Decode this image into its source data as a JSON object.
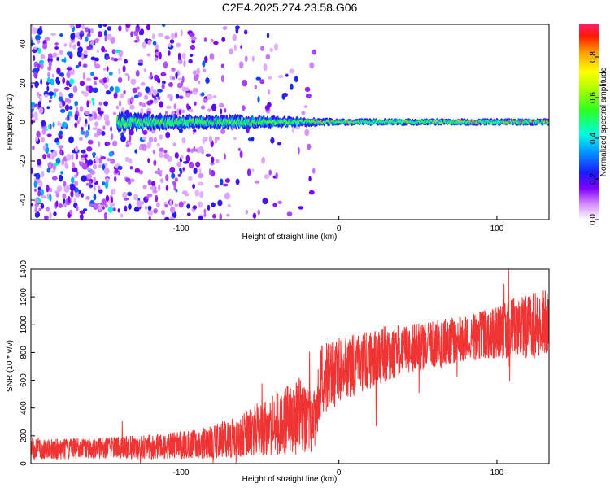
{
  "title": "C2E4.2025.274.23.58.G06",
  "chart_data": [
    {
      "type": "heatmap",
      "title": "",
      "xlabel": "Height of straight line (km)",
      "ylabel": "Frequency (Hz)",
      "xlim": [
        -195,
        133
      ],
      "ylim": [
        -50,
        50
      ],
      "xticks": [
        -100,
        0,
        100
      ],
      "yticks": [
        -40,
        -20,
        0,
        20,
        40
      ],
      "grid": false,
      "colorbar": {
        "label": "Normalized spectral amplitude",
        "range": [
          0,
          0.96
        ],
        "ticks": [
          0.0,
          0.2,
          0.4,
          0.6,
          0.8
        ]
      },
      "signal_band": {
        "center_frequency_hz": 0,
        "spread": [
          [
            -140,
            4
          ],
          [
            -100,
            3
          ],
          [
            -60,
            3
          ],
          [
            -20,
            2
          ],
          [
            0,
            1.5
          ],
          [
            40,
            1.5
          ],
          [
            133,
            1.5
          ]
        ]
      },
      "spurious_feature": {
        "x": [
          -35,
          -30,
          -27
        ],
        "y": [
          13,
          18,
          22
        ]
      }
    },
    {
      "type": "line",
      "title": "",
      "xlabel": "Height of straight line (km)",
      "ylabel": "SNR (10 * v/v)",
      "xlim": [
        -195,
        133
      ],
      "ylim": [
        0,
        1400
      ],
      "xticks": [
        -100,
        0,
        100
      ],
      "yticks": [
        0,
        200,
        400,
        600,
        800,
        1000,
        1200,
        1400
      ],
      "grid": false,
      "series": [
        {
          "name": "SNR",
          "color": "#f03434",
          "trend": {
            "x": [
              -195,
              -150,
              -100,
              -80,
              -60,
              -40,
              -25,
              -15,
              -12,
              -5,
              0,
              10,
              20,
              40,
              60,
              80,
              100,
              120,
              133
            ],
            "mean": [
              100,
              110,
              130,
              155,
              210,
              290,
              340,
              320,
              580,
              630,
              690,
              710,
              760,
              820,
              860,
              900,
              950,
              990,
              1030
            ],
            "amp": [
              75,
              75,
              100,
              120,
              160,
              230,
              280,
              230,
              260,
              270,
              250,
              230,
              220,
              180,
              170,
              170,
              190,
              240,
              260
            ]
          }
        }
      ]
    }
  ]
}
